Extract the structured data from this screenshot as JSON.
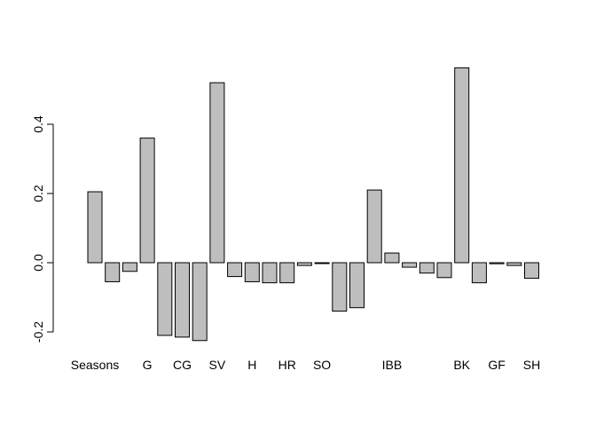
{
  "chart_data": {
    "type": "bar",
    "title": "",
    "xlabel": "",
    "ylabel": "",
    "ylim": [
      -0.23,
      0.57
    ],
    "yticks": [
      "-0.2",
      "0.0",
      "0.2",
      "0.4"
    ],
    "ytick_values": [
      -0.2,
      0.0,
      0.2,
      0.4
    ],
    "bar_fill": "#bebebe",
    "bar_stroke": "#000000",
    "categories": [
      "Seasons",
      "",
      "",
      "G",
      "",
      "CG",
      "",
      "SV",
      "",
      "H",
      "",
      "HR",
      "",
      "SO",
      "",
      "",
      "",
      "IBB",
      "",
      "",
      "",
      "BK",
      "",
      "GF",
      "",
      "SH",
      "",
      ""
    ],
    "values": [
      0.205,
      -0.055,
      -0.025,
      0.36,
      -0.21,
      -0.215,
      -0.225,
      0.52,
      -0.04,
      -0.055,
      -0.058,
      -0.058,
      -0.008,
      -0.002,
      -0.14,
      -0.13,
      0.21,
      0.028,
      -0.013,
      -0.03,
      -0.043,
      0.563,
      -0.058,
      -0.003,
      -0.008,
      -0.045,
      null,
      null
    ]
  }
}
